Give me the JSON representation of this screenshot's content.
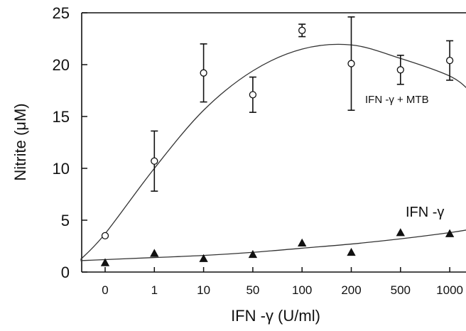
{
  "chart_data": {
    "type": "scatter",
    "title": "",
    "xlabel": "IFN -γ (U/ml)",
    "ylabel": "Nitrite (μM)",
    "categories": [
      "0",
      "1",
      "10",
      "50",
      "100",
      "200",
      "500",
      "1000"
    ],
    "ylim": [
      0,
      25
    ],
    "yticks": [
      "0",
      "5",
      "10",
      "15",
      "20",
      "25"
    ],
    "grid": false,
    "series": [
      {
        "name": "IFN -γ + MTB",
        "marker": "open-circle",
        "values": [
          3.5,
          10.7,
          19.2,
          17.1,
          23.3,
          20.1,
          19.5,
          20.4
        ],
        "errors": [
          0,
          2.9,
          2.8,
          1.7,
          0.6,
          4.5,
          1.4,
          1.9
        ],
        "fit": [
          [
            -0.5,
            1.2
          ],
          [
            0,
            3.7
          ],
          [
            1,
            10.0
          ],
          [
            2,
            15.6
          ],
          [
            3,
            19.4
          ],
          [
            4,
            21.5
          ],
          [
            5,
            21.9
          ],
          [
            6,
            20.6
          ],
          [
            7,
            18.9
          ],
          [
            7.4,
            17.5
          ]
        ]
      },
      {
        "name": "IFN -γ",
        "marker": "filled-triangle",
        "values": [
          0.9,
          1.8,
          1.3,
          1.7,
          2.8,
          1.9,
          3.8,
          3.7
        ],
        "fit": [
          [
            -0.5,
            1.1
          ],
          [
            1,
            1.4
          ],
          [
            2,
            1.6
          ],
          [
            3,
            1.9
          ],
          [
            4,
            2.3
          ],
          [
            5,
            2.7
          ],
          [
            6,
            3.2
          ],
          [
            7,
            3.8
          ],
          [
            7.4,
            4.1
          ]
        ]
      }
    ]
  }
}
